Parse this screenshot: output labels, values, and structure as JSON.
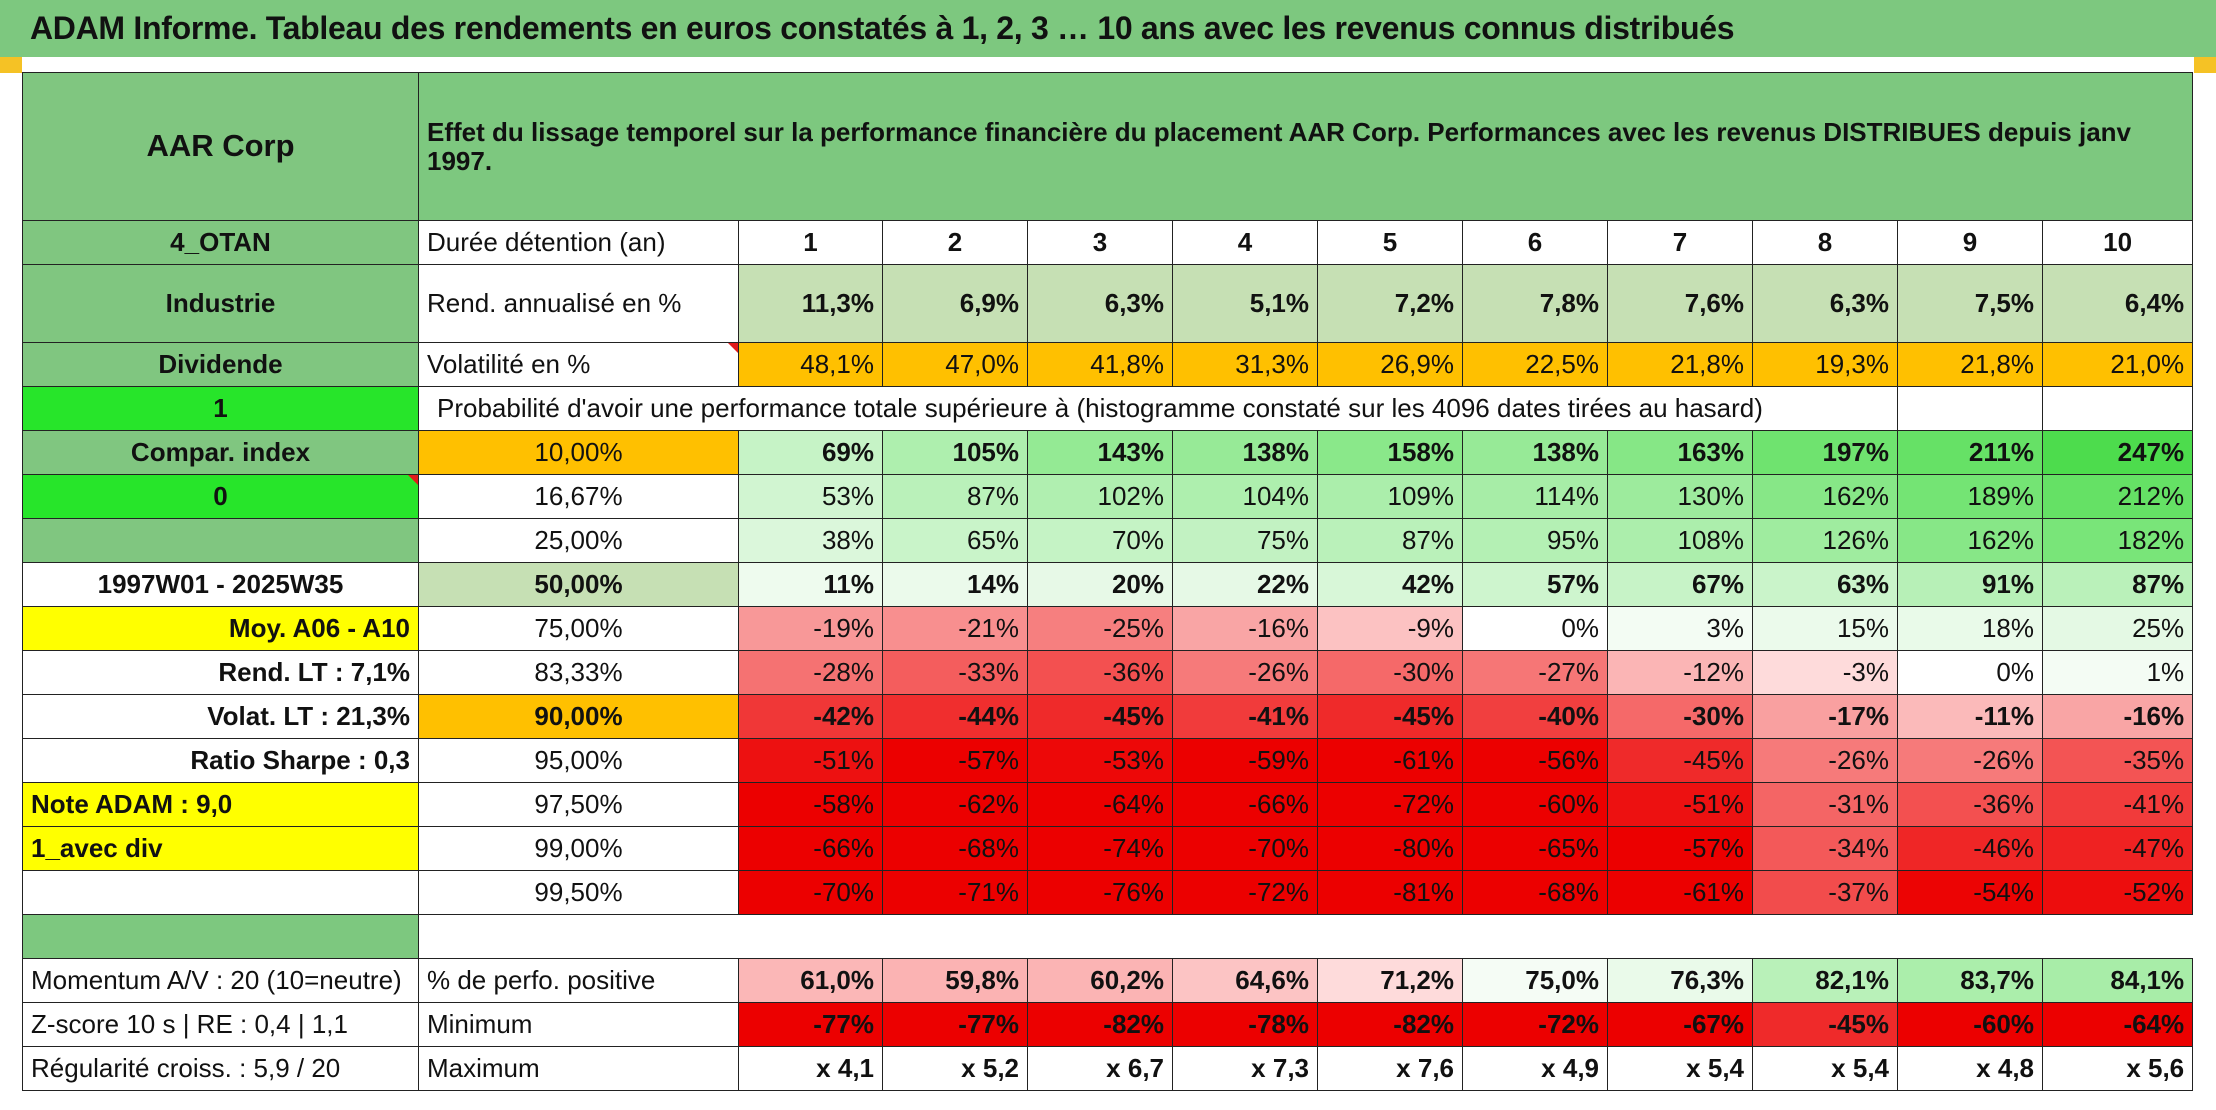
{
  "title": "ADAM Informe. Tableau des rendements en euros constatés à 1, 2, 3 … 10 ans avec les revenus connus distribués",
  "company": "AAR Corp",
  "header_text": "Effet du lissage temporel sur la performance financière du placement AAR Corp. Performances avec les revenus DISTRIBUES depuis janv 1997.",
  "left_panel": {
    "code": "4_OTAN",
    "sector": "Industrie",
    "dividend_label": "Dividende",
    "dividend_value": "1",
    "compar_label": "Compar. index",
    "compar_value": "0",
    "period": "1997W01 - 2025W35",
    "moy": "Moy. A06 - A10",
    "rend_lt": "Rend. LT :   7,1%",
    "volat_lt": "Volat. LT :   21,3%",
    "sharpe": "Ratio Sharpe :   0,3",
    "note": "Note ADAM : 9,0",
    "div_mode": "1_avec div",
    "momentum": "Momentum A/V : 20 (10=neutre)",
    "zscore": "Z-score 10 s | RE : 0,4 | 1,1",
    "regularite": "Régularité croiss. : 5,9 / 20"
  },
  "labels": {
    "duree": "Durée détention (an)",
    "rend": "Rend. annualisé en %",
    "vol": "Volatilité en %",
    "proba": "Probabilité d'avoir une performance totale supérieure à (histogramme constaté sur les 4096 dates tirées au hasard)",
    "pct_pos": "% de perfo. positive",
    "minimum": "Minimum",
    "maximum": "Maximum"
  },
  "years": [
    "1",
    "2",
    "3",
    "4",
    "5",
    "6",
    "7",
    "8",
    "9",
    "10"
  ],
  "rend": [
    "11,3%",
    "6,9%",
    "6,3%",
    "5,1%",
    "7,2%",
    "7,8%",
    "7,6%",
    "6,3%",
    "7,5%",
    "6,4%"
  ],
  "vol": [
    "48,1%",
    "47,0%",
    "41,8%",
    "31,3%",
    "26,9%",
    "22,5%",
    "21,8%",
    "19,3%",
    "21,8%",
    "21,0%"
  ],
  "rows": [
    {
      "p": "10,00%",
      "v": [
        "69%",
        "105%",
        "143%",
        "138%",
        "158%",
        "138%",
        "163%",
        "197%",
        "211%",
        "247%"
      ],
      "bold": true
    },
    {
      "p": "16,67%",
      "v": [
        "53%",
        "87%",
        "102%",
        "104%",
        "109%",
        "114%",
        "130%",
        "162%",
        "189%",
        "212%"
      ],
      "bold": false
    },
    {
      "p": "25,00%",
      "v": [
        "38%",
        "65%",
        "70%",
        "75%",
        "87%",
        "95%",
        "108%",
        "126%",
        "162%",
        "182%"
      ],
      "bold": false
    },
    {
      "p": "50,00%",
      "v": [
        "11%",
        "14%",
        "20%",
        "22%",
        "42%",
        "57%",
        "67%",
        "63%",
        "91%",
        "87%"
      ],
      "bold": true
    },
    {
      "p": "75,00%",
      "v": [
        "-19%",
        "-21%",
        "-25%",
        "-16%",
        "-9%",
        "0%",
        "3%",
        "15%",
        "18%",
        "25%"
      ],
      "bold": false
    },
    {
      "p": "83,33%",
      "v": [
        "-28%",
        "-33%",
        "-36%",
        "-26%",
        "-30%",
        "-27%",
        "-12%",
        "-3%",
        "0%",
        "1%"
      ],
      "bold": false
    },
    {
      "p": "90,00%",
      "v": [
        "-42%",
        "-44%",
        "-45%",
        "-41%",
        "-45%",
        "-40%",
        "-30%",
        "-17%",
        "-11%",
        "-16%"
      ],
      "bold": true
    },
    {
      "p": "95,00%",
      "v": [
        "-51%",
        "-57%",
        "-53%",
        "-59%",
        "-61%",
        "-56%",
        "-45%",
        "-26%",
        "-26%",
        "-35%"
      ],
      "bold": false
    },
    {
      "p": "97,50%",
      "v": [
        "-58%",
        "-62%",
        "-64%",
        "-66%",
        "-72%",
        "-60%",
        "-51%",
        "-31%",
        "-36%",
        "-41%"
      ],
      "bold": false
    },
    {
      "p": "99,00%",
      "v": [
        "-66%",
        "-68%",
        "-74%",
        "-70%",
        "-80%",
        "-65%",
        "-57%",
        "-34%",
        "-46%",
        "-47%"
      ],
      "bold": false
    },
    {
      "p": "99,50%",
      "v": [
        "-70%",
        "-71%",
        "-76%",
        "-72%",
        "-81%",
        "-68%",
        "-61%",
        "-37%",
        "-54%",
        "-52%"
      ],
      "bold": false
    }
  ],
  "pct_pos": [
    "61,0%",
    "59,8%",
    "60,2%",
    "64,6%",
    "71,2%",
    "75,0%",
    "76,3%",
    "82,1%",
    "83,7%",
    "84,1%"
  ],
  "minimum": [
    "-77%",
    "-77%",
    "-82%",
    "-78%",
    "-82%",
    "-72%",
    "-67%",
    "-45%",
    "-60%",
    "-64%"
  ],
  "maximum": [
    "x 4,1",
    "x 5,2",
    "x 6,7",
    "x 7,3",
    "x 7,6",
    "x 4,9",
    "x 5,4",
    "x 5,4",
    "x 4,8",
    "x 5,6"
  ],
  "colors": {
    "header_green": "#7dc87f",
    "lime": "#27e52a",
    "yellow": "#ffff00",
    "orange": "#ffc000",
    "light_green": "#c6e0b4",
    "positive_max": "#4ddc4b",
    "negative_max": "#ee0000",
    "red_text": "#e11b1b"
  }
}
